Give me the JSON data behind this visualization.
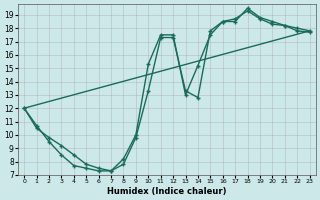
{
  "xlabel": "Humidex (Indice chaleur)",
  "background_color": "#cce8e8",
  "grid_color": "#b0b0b0",
  "line_color": "#1a6b5a",
  "xlim": [
    -0.5,
    23.5
  ],
  "ylim": [
    7,
    19.8
  ],
  "yticks": [
    7,
    8,
    9,
    10,
    11,
    12,
    13,
    14,
    15,
    16,
    17,
    18,
    19
  ],
  "xticks": [
    0,
    1,
    2,
    3,
    4,
    5,
    6,
    7,
    8,
    9,
    10,
    11,
    12,
    13,
    14,
    15,
    16,
    17,
    18,
    19,
    20,
    21,
    22,
    23
  ],
  "series1_x": [
    0,
    1,
    2,
    3,
    4,
    5,
    6,
    7,
    8,
    9,
    10,
    11,
    12,
    13,
    14,
    15,
    16,
    17,
    18,
    19,
    20,
    21,
    22,
    23
  ],
  "series1_y": [
    12,
    10.7,
    9.5,
    8.5,
    7.7,
    7.5,
    7.3,
    7.3,
    7.8,
    9.8,
    13.3,
    17.3,
    17.3,
    13.3,
    12.8,
    17.8,
    18.5,
    18.7,
    19.3,
    18.7,
    18.3,
    18.2,
    18.0,
    17.8
  ],
  "series2_x": [
    0,
    1,
    2,
    3,
    4,
    5,
    6,
    7,
    8,
    9,
    10,
    11,
    12,
    13,
    14,
    15,
    16,
    17,
    18,
    19,
    20,
    21,
    22,
    23
  ],
  "series2_y": [
    12,
    10.5,
    9.8,
    9.2,
    8.5,
    7.8,
    7.5,
    7.3,
    8.2,
    10.0,
    15.3,
    17.5,
    17.5,
    13.0,
    15.2,
    17.5,
    18.5,
    18.5,
    19.5,
    18.8,
    18.5,
    18.2,
    17.8,
    17.7
  ],
  "series3_x": [
    0,
    23
  ],
  "series3_y": [
    12,
    17.8
  ],
  "marker": "+",
  "markersize": 3,
  "linewidth": 1.0
}
